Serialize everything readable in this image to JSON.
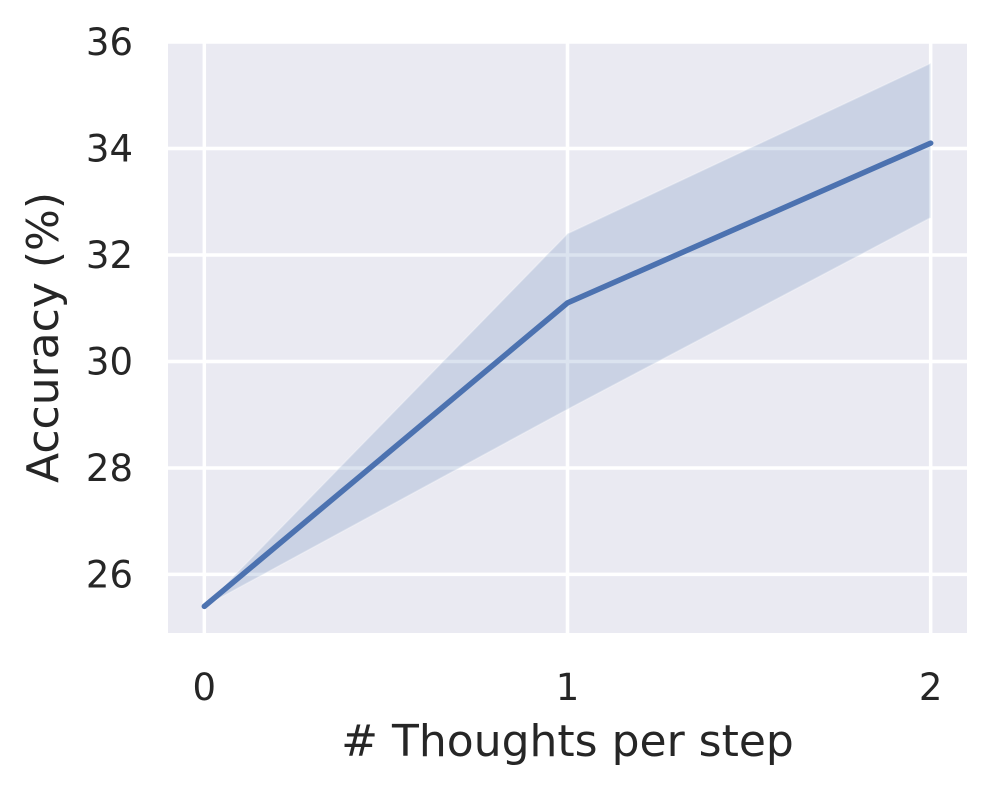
{
  "chart_data": {
    "type": "line",
    "title": "",
    "xlabel": "# Thoughts per step",
    "ylabel": "Accuracy (%)",
    "x": [
      0,
      1,
      2
    ],
    "series": [
      {
        "name": "accuracy",
        "values": [
          25.4,
          31.1,
          34.1
        ],
        "ci_lower": [
          25.4,
          29.1,
          32.7
        ],
        "ci_upper": [
          25.4,
          32.4,
          35.6
        ]
      }
    ],
    "xtick_labels": [
      "0",
      "1",
      "2"
    ],
    "xtick_values": [
      0,
      1,
      2
    ],
    "ytick_labels": [
      "26",
      "28",
      "30",
      "32",
      "34",
      "36"
    ],
    "ytick_values": [
      26,
      28,
      30,
      32,
      34,
      36
    ],
    "xlim": [
      -0.1,
      2.1
    ],
    "ylim": [
      24.9,
      36.0
    ],
    "grid": true,
    "legend": "none",
    "colors": {
      "line": "#4c72b0",
      "band": "#4c72b0",
      "band_opacity": 0.2,
      "plot_background": "#eaeaf2",
      "gridline": "#ffffff",
      "text": "#262626",
      "figure_background": "#ffffff"
    }
  }
}
